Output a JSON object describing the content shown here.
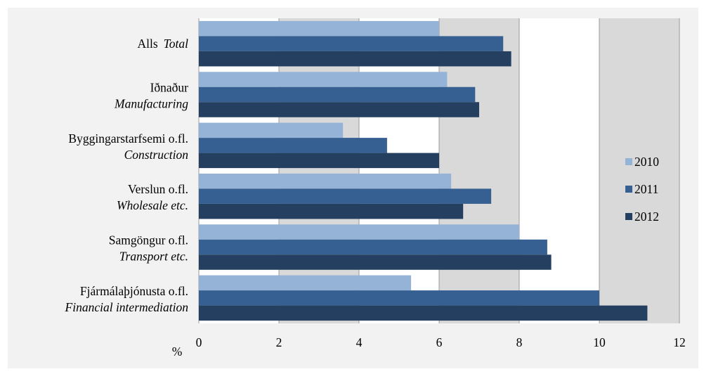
{
  "chart_data": {
    "type": "bar",
    "orientation": "horizontal",
    "categories": [
      {
        "is": "Alls",
        "en": "Total"
      },
      {
        "is": "Iðnaður",
        "en": "Manufacturing"
      },
      {
        "is": "Byggingarstarfsemi o.fl.",
        "en": "Construction"
      },
      {
        "is": "Verslun o.fl.",
        "en": "Wholesale etc."
      },
      {
        "is": "Samgöngur o.fl.",
        "en": "Transport etc."
      },
      {
        "is": "Fjármálaþjónusta o.fl.",
        "en": "Financial intermediation"
      }
    ],
    "series": [
      {
        "name": "2010",
        "color": "#95b3d7",
        "values": [
          6.0,
          6.2,
          3.6,
          6.3,
          8.0,
          5.3
        ]
      },
      {
        "name": "2011",
        "color": "#376092",
        "values": [
          7.6,
          6.9,
          4.7,
          7.3,
          8.7,
          10.0
        ]
      },
      {
        "name": "2012",
        "color": "#243f60",
        "values": [
          7.8,
          7.0,
          6.0,
          6.6,
          8.8,
          11.2
        ]
      }
    ],
    "xlim": [
      0,
      12
    ],
    "xticks": [
      "0",
      "2",
      "4",
      "6",
      "8",
      "10",
      "12"
    ],
    "unit_label": "%",
    "grid": true,
    "legend_position": "right",
    "plot_background_alternating": [
      "#ffffff",
      "#d9d9d9"
    ]
  }
}
